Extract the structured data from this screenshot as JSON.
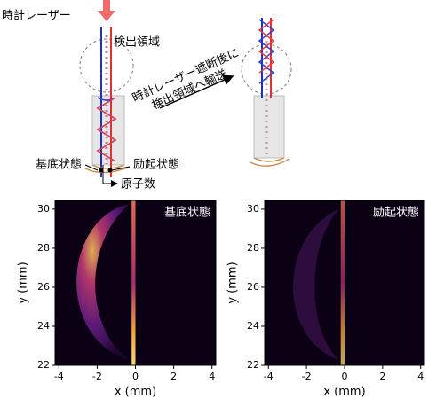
{
  "diagram": {
    "laser": "時計レーザー",
    "region": "検出領域",
    "transport_1": "時計レーザー遮断後に",
    "transport_2": "検出領域へ輸送",
    "ground": "基底状態",
    "excited": "励起状態",
    "atoms": "原子数"
  },
  "chart_data": [
    {
      "type": "heatmap",
      "annotation": "基底状態",
      "xlabel": "x (mm)",
      "ylabel": "y (mm)",
      "xlim": [
        -4.2,
        4.2
      ],
      "ylim": [
        22,
        30.45
      ],
      "xticks": [
        -4,
        -2,
        0,
        2,
        4
      ],
      "yticks": [
        22,
        24,
        26,
        28,
        30
      ]
    },
    {
      "type": "heatmap",
      "annotation": "励起状態",
      "xlabel": "x (mm)",
      "ylabel": "y (mm)",
      "xlim": [
        -4.2,
        4.2
      ],
      "ylim": [
        22,
        30.45
      ],
      "xticks": [
        -4,
        -2,
        0,
        2,
        4
      ],
      "yticks": [
        22,
        24,
        26,
        28,
        30
      ]
    }
  ]
}
